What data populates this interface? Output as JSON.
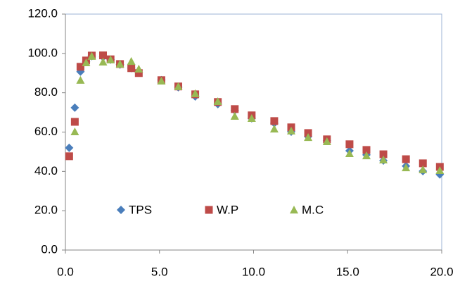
{
  "chart_data": {
    "type": "scatter",
    "xlim": [
      0,
      20
    ],
    "xticks": [
      {
        "value": 0,
        "label": "0.0"
      },
      {
        "value": 5,
        "label": "5.0"
      },
      {
        "value": 10,
        "label": "10.0"
      },
      {
        "value": 15,
        "label": "15.0"
      },
      {
        "value": 20,
        "label": "20.0"
      }
    ],
    "ylim": [
      0,
      120
    ],
    "yticks": [
      {
        "value": 0,
        "label": "0.0"
      },
      {
        "value": 20,
        "label": "20.0"
      },
      {
        "value": 40,
        "label": "40.0"
      },
      {
        "value": 60,
        "label": "60.0"
      },
      {
        "value": 80,
        "label": "80.0"
      },
      {
        "value": 100,
        "label": "100.0"
      },
      {
        "value": 120,
        "label": "120.0"
      }
    ],
    "legend": "bottom",
    "series": [
      {
        "name": "TPS",
        "color": "#4a7ebb",
        "marker": "diamond",
        "x": [
          0.2,
          0.5,
          0.8,
          1.1,
          1.4,
          2.0,
          2.4,
          2.9,
          3.5,
          3.9,
          5.1,
          6.0,
          6.9,
          8.1,
          9.0,
          9.9,
          11.1,
          12.0,
          12.9,
          13.9,
          15.1,
          16.0,
          16.9,
          18.1,
          19.0,
          19.9
        ],
        "values": [
          52,
          72.4,
          90.7,
          95.7,
          98.6,
          98.2,
          96.8,
          94.3,
          92.5,
          90.3,
          86.4,
          82.8,
          78.1,
          74.2,
          71,
          67,
          64.5,
          60.2,
          57.7,
          55.6,
          50.5,
          48.4,
          45.5,
          42.7,
          40.1,
          38.4
        ]
      },
      {
        "name": "W.P",
        "color": "#be4b48",
        "marker": "square",
        "x": [
          0.2,
          0.5,
          0.8,
          1.1,
          1.4,
          2.0,
          2.4,
          2.9,
          3.5,
          3.9,
          5.1,
          6.0,
          6.9,
          8.1,
          9.0,
          9.9,
          11.1,
          12.0,
          12.9,
          13.9,
          15.1,
          16.0,
          16.9,
          18.1,
          19.0,
          19.9
        ],
        "values": [
          47.7,
          65.2,
          93.2,
          96.4,
          98.9,
          99,
          97,
          94.6,
          92.5,
          90,
          86.4,
          83.2,
          79.2,
          75.3,
          71.7,
          68.5,
          65.6,
          62.4,
          59.5,
          56.3,
          53.8,
          50.9,
          48.7,
          46.2,
          44.1,
          42.3
        ]
      },
      {
        "name": "M.C",
        "color": "#98b954",
        "marker": "triangle",
        "x": [
          0.5,
          0.8,
          1.1,
          1.4,
          2.0,
          2.4,
          2.9,
          3.5,
          3.9,
          5.1,
          6.0,
          6.9,
          8.1,
          9.0,
          9.9,
          11.1,
          12.0,
          12.9,
          13.9,
          15.1,
          16.0,
          16.9,
          18.1,
          19.0,
          19.9
        ],
        "values": [
          60.2,
          86.4,
          95.3,
          98.6,
          95.7,
          96.8,
          94.6,
          96,
          92.1,
          86,
          83.2,
          79.6,
          75.6,
          68.1,
          67,
          61.6,
          60.6,
          57.3,
          55.2,
          49.1,
          48,
          45.9,
          41.9,
          40.9,
          40.5
        ]
      }
    ]
  }
}
